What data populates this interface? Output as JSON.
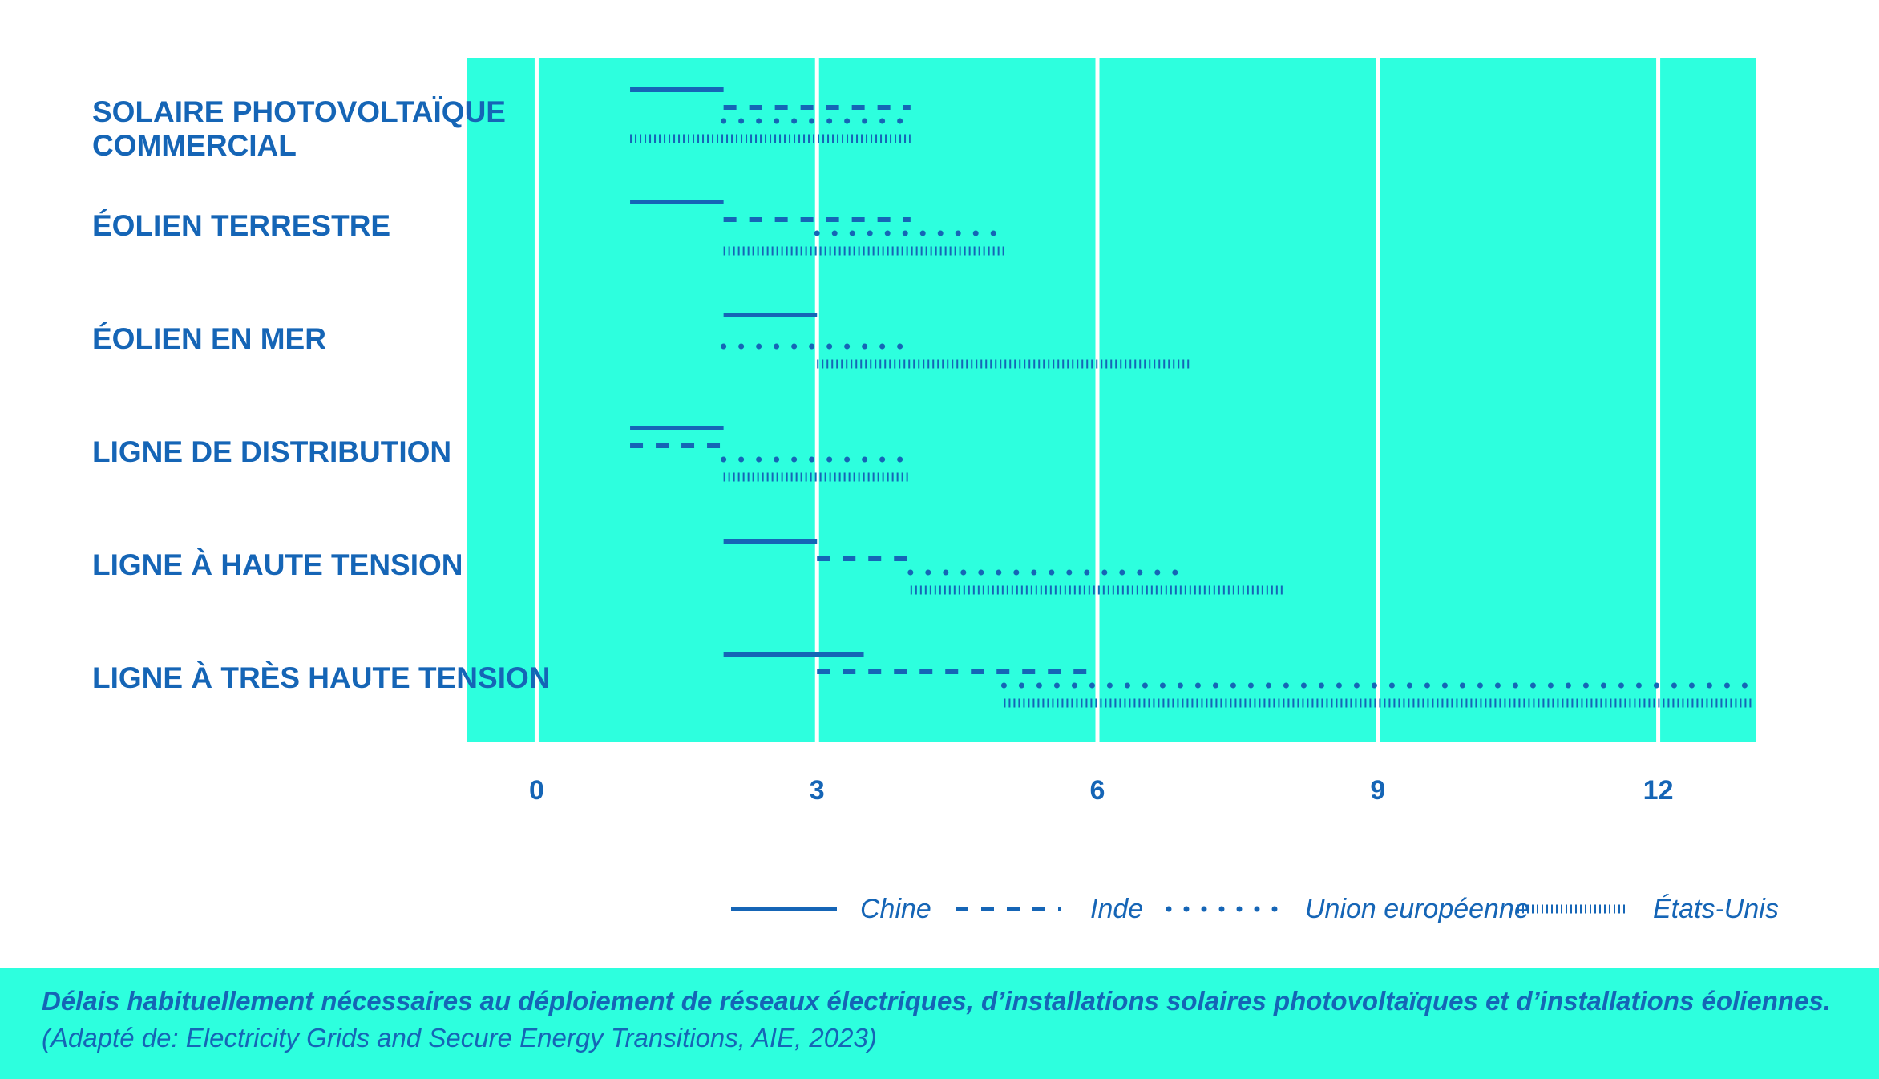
{
  "chart_data": {
    "type": "gantt",
    "categories": [
      [
        "SOLAIRE PHOTOVOLTAÏQUE",
        "COMMERCIAL"
      ],
      [
        "ÉOLIEN TERRESTRE"
      ],
      [
        "ÉOLIEN EN MER"
      ],
      [
        "LIGNE DE DISTRIBUTION"
      ],
      [
        "LIGNE À HAUTE TENSION"
      ],
      [
        "LIGNE À TRÈS HAUTE TENSION"
      ]
    ],
    "x_ticks": [
      "0",
      "3",
      "6",
      "9",
      "12"
    ],
    "xlim": [
      -0.75,
      13.05
    ],
    "grid": true,
    "legend_position": "bottom-right",
    "series": [
      {
        "name": "Chine",
        "style": "solid",
        "ranges": [
          [
            1,
            2
          ],
          [
            1,
            2
          ],
          [
            2,
            3
          ],
          [
            1,
            2
          ],
          [
            2,
            3
          ],
          [
            2,
            3.5
          ]
        ]
      },
      {
        "name": "Inde",
        "style": "dashed",
        "ranges": [
          [
            2,
            4
          ],
          [
            2,
            4
          ],
          null,
          [
            1,
            2
          ],
          [
            3,
            4
          ],
          [
            3,
            6
          ]
        ]
      },
      {
        "name": "Union européenne",
        "style": "dotted",
        "ranges": [
          [
            2,
            4
          ],
          [
            3,
            5
          ],
          [
            2,
            4
          ],
          [
            2,
            4
          ],
          [
            4,
            7
          ],
          [
            5,
            13
          ]
        ]
      },
      {
        "name": "États-Unis",
        "style": "hatched",
        "ranges": [
          [
            1,
            4
          ],
          [
            2,
            5
          ],
          [
            3,
            7
          ],
          [
            2,
            4
          ],
          [
            4,
            8
          ],
          [
            5,
            13
          ]
        ]
      }
    ],
    "colors": {
      "plot_background": "#2dffde",
      "line": "#1565b6",
      "grid": "#ffffff"
    }
  },
  "caption": {
    "title": "Délais habituellement nécessaires au déploiement de réseaux électriques, d’installations solaires photovoltaïques et d’installations éoliennes.",
    "source": "(Adapté de: Electricity Grids and Secure Energy Transitions, AIE, 2023)"
  }
}
